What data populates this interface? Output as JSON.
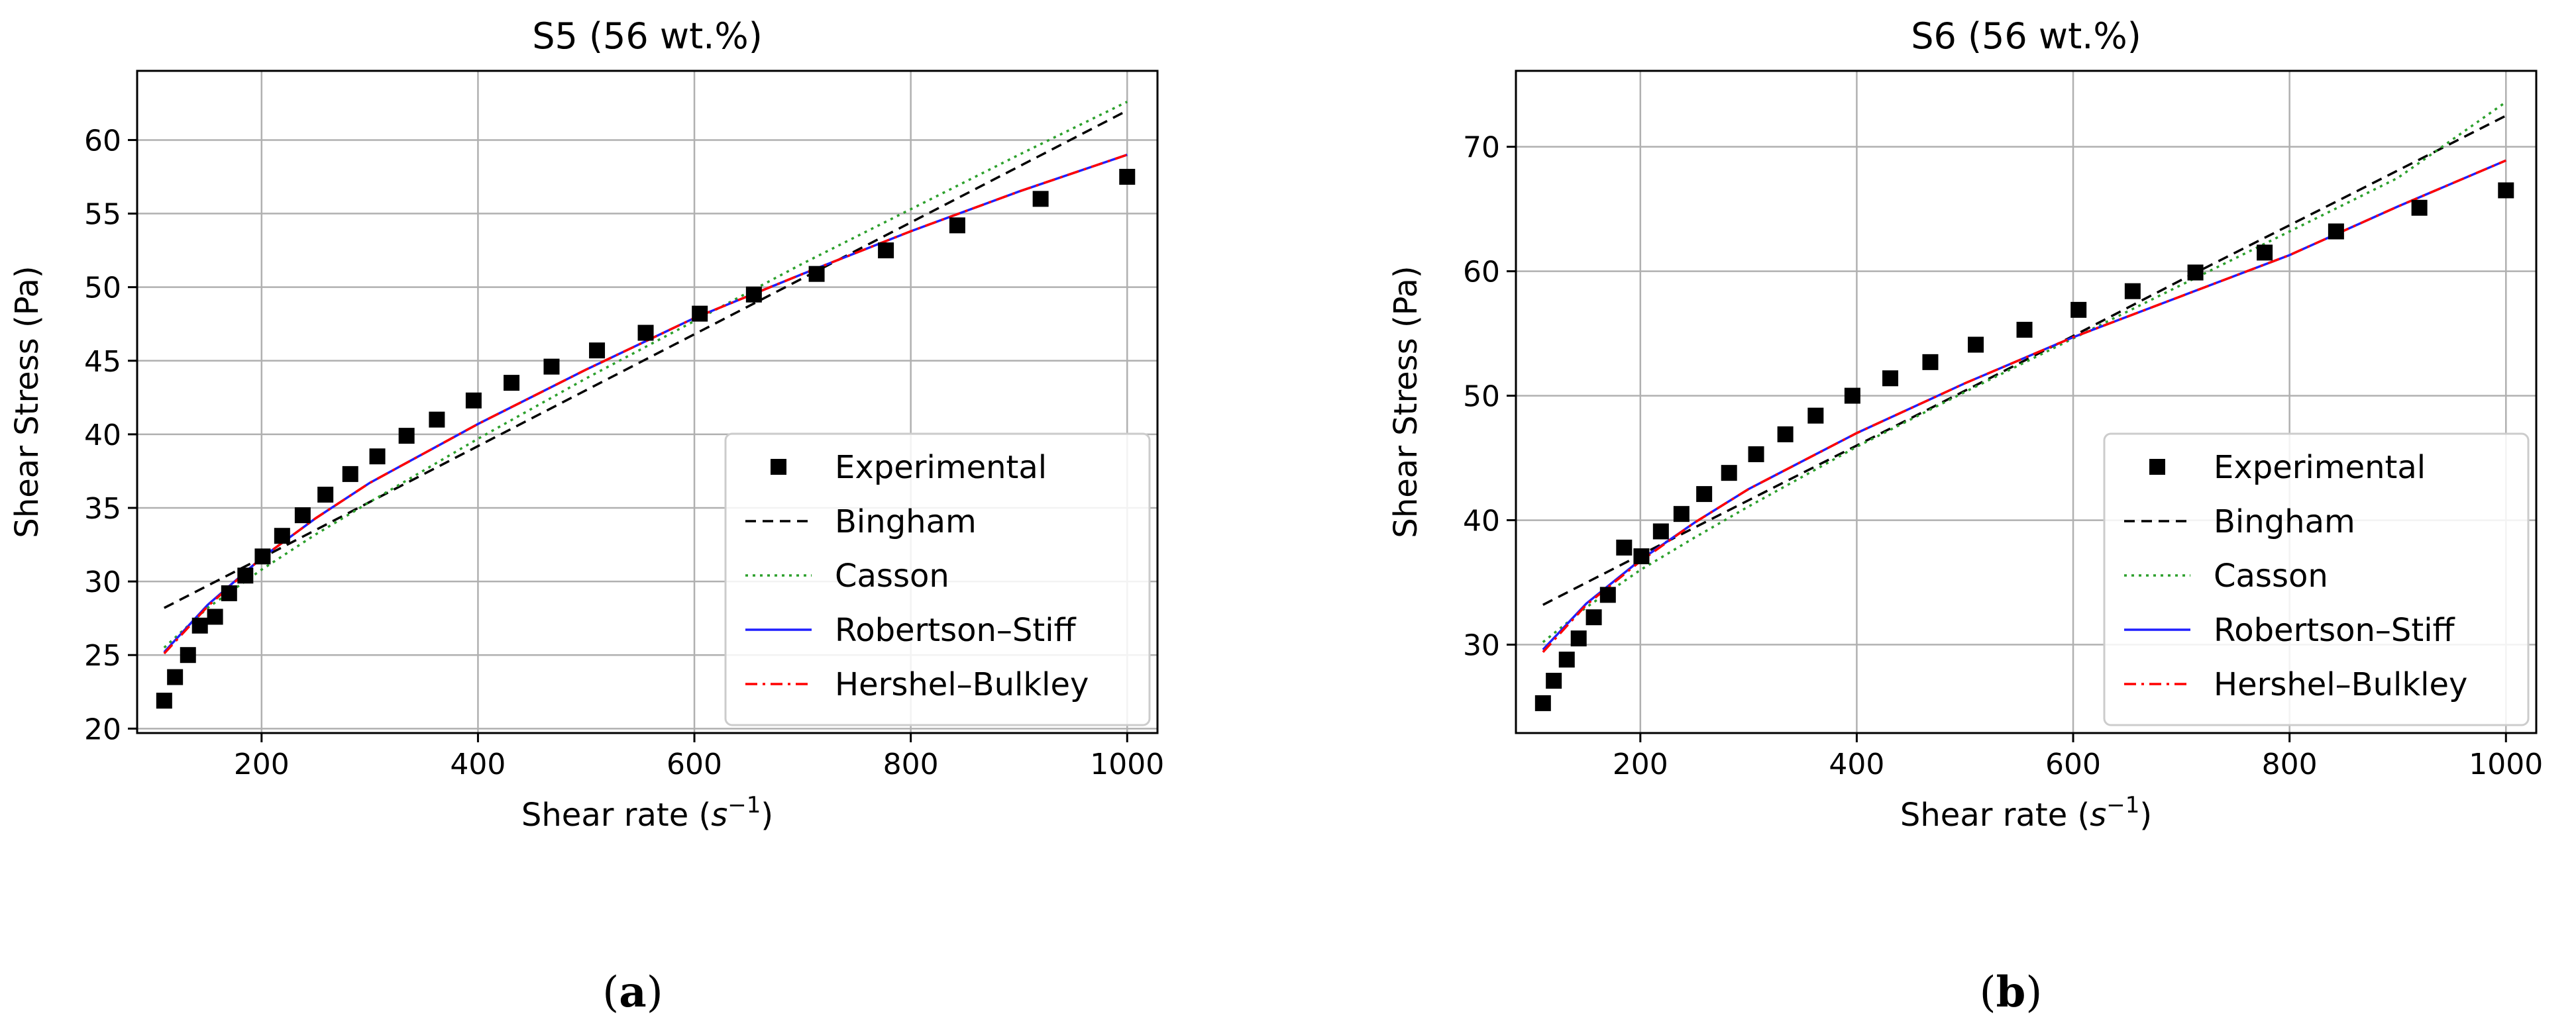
{
  "figure": {
    "panels": [
      {
        "label": "a",
        "caption_open": "(",
        "caption_close": ")"
      },
      {
        "label": "b",
        "caption_open": "(",
        "caption_close": ")"
      }
    ]
  },
  "legend": {
    "entries": [
      "Experimental",
      "Bingham",
      "Casson",
      "Robertson–Stiff",
      "Hershel–Bulkley"
    ]
  },
  "styles": {
    "Experimental": {
      "color": "#000000",
      "kind": "marker"
    },
    "Bingham": {
      "color": "#000000",
      "kind": "line",
      "dash": "16,10"
    },
    "Casson": {
      "color": "#2ca02c",
      "kind": "line",
      "dash": "4,7"
    },
    "Robertson–Stiff": {
      "color": "#1f1fff",
      "kind": "line",
      "dash": ""
    },
    "Hershel–Bulkley": {
      "color": "#ff0000",
      "kind": "line",
      "dash": "18,8,4,8"
    }
  },
  "chart_data": [
    {
      "type": "line",
      "title": "S5 (56 wt.%)",
      "xlabel": "Shear rate",
      "xlabel_unit_base": "s",
      "xlabel_unit_exp": "−1",
      "ylabel": "Shear Stress (Pa)",
      "xlim": [
        85,
        1028
      ],
      "ylim": [
        19.7,
        64.7
      ],
      "xticks": [
        200,
        400,
        600,
        800,
        1000
      ],
      "yticks": [
        20,
        25,
        30,
        35,
        40,
        45,
        50,
        55,
        60
      ],
      "legend_position": "lower-right",
      "series": [
        {
          "name": "Experimental",
          "x": [
            110,
            120,
            132,
            143,
            157,
            170,
            185,
            201,
            219,
            238,
            259,
            282,
            307,
            334,
            362,
            396,
            431,
            468,
            510,
            555,
            605,
            655,
            713,
            777,
            843,
            920,
            1000
          ],
          "y": [
            21.9,
            23.5,
            25.0,
            27.0,
            27.6,
            29.2,
            30.4,
            31.7,
            33.1,
            34.5,
            35.9,
            37.3,
            38.5,
            39.9,
            41.0,
            42.3,
            43.5,
            44.6,
            45.7,
            46.9,
            48.2,
            49.5,
            50.9,
            52.5,
            54.2,
            56.0,
            57.5
          ]
        },
        {
          "name": "Bingham",
          "x": [
            110,
            200,
            300,
            400,
            500,
            600,
            700,
            800,
            900,
            1000
          ],
          "y": [
            28.2,
            31.6,
            35.4,
            39.2,
            43.0,
            46.8,
            50.6,
            54.4,
            58.2,
            62.0
          ]
        },
        {
          "name": "Casson",
          "x": [
            110,
            150,
            200,
            250,
            300,
            400,
            500,
            600,
            700,
            800,
            900,
            1000
          ],
          "y": [
            25.5,
            28.2,
            30.8,
            33.2,
            35.4,
            39.7,
            43.8,
            47.7,
            51.6,
            55.3,
            59.0,
            62.6
          ]
        },
        {
          "name": "Robertson–Stiff",
          "x": [
            110,
            150,
            200,
            250,
            300,
            400,
            500,
            600,
            700,
            800,
            900,
            1000
          ],
          "y": [
            25.2,
            28.4,
            31.6,
            34.3,
            36.7,
            40.7,
            44.4,
            47.9,
            50.9,
            53.8,
            56.5,
            59.0
          ]
        },
        {
          "name": "Hershel–Bulkley",
          "x": [
            110,
            150,
            200,
            250,
            300,
            400,
            500,
            600,
            700,
            800,
            900,
            1000
          ],
          "y": [
            25.1,
            28.3,
            31.6,
            34.3,
            36.7,
            40.7,
            44.4,
            47.9,
            50.9,
            53.8,
            56.5,
            59.0
          ]
        }
      ]
    },
    {
      "type": "line",
      "title": "S6 (56 wt.%)",
      "xlabel": "Shear rate",
      "xlabel_unit_base": "s",
      "xlabel_unit_exp": "−1",
      "ylabel": "Shear Stress (Pa)",
      "xlim": [
        85,
        1028
      ],
      "ylim": [
        22.9,
        76.1
      ],
      "xticks": [
        200,
        400,
        600,
        800,
        1000
      ],
      "yticks": [
        30,
        40,
        50,
        60,
        70
      ],
      "legend_position": "lower-right",
      "series": [
        {
          "name": "Experimental",
          "x": [
            110,
            120,
            132,
            143,
            157,
            170,
            185,
            201,
            219,
            238,
            259,
            282,
            307,
            334,
            362,
            396,
            431,
            468,
            510,
            555,
            605,
            655,
            713,
            777,
            843,
            920,
            1000
          ],
          "y": [
            25.3,
            27.1,
            28.8,
            30.5,
            32.2,
            34.0,
            37.8,
            37.1,
            39.1,
            40.5,
            42.1,
            43.8,
            45.3,
            46.9,
            48.4,
            50.0,
            51.4,
            52.7,
            54.1,
            55.3,
            56.9,
            58.4,
            59.9,
            61.5,
            63.2,
            65.1,
            66.5
          ]
        },
        {
          "name": "Bingham",
          "x": [
            110,
            200,
            300,
            400,
            500,
            600,
            700,
            800,
            900,
            1000
          ],
          "y": [
            33.2,
            37.2,
            41.6,
            46.0,
            50.4,
            54.8,
            59.3,
            63.7,
            68.1,
            72.5
          ]
        },
        {
          "name": "Casson",
          "x": [
            110,
            150,
            200,
            250,
            300,
            400,
            500,
            600,
            700,
            800,
            900,
            1000
          ],
          "y": [
            30.2,
            33.0,
            36.0,
            38.6,
            41.1,
            45.9,
            50.3,
            54.6,
            58.9,
            63.2,
            67.5,
            73.6
          ]
        },
        {
          "name": "Robertson–Stiff",
          "x": [
            110,
            150,
            200,
            250,
            300,
            400,
            500,
            600,
            700,
            800,
            900,
            1000
          ],
          "y": [
            29.6,
            33.3,
            36.8,
            39.8,
            42.5,
            47.0,
            51.0,
            54.7,
            58.0,
            61.3,
            65.2,
            68.9
          ]
        },
        {
          "name": "Hershel–Bulkley",
          "x": [
            110,
            150,
            200,
            250,
            300,
            400,
            500,
            600,
            700,
            800,
            900,
            1000
          ],
          "y": [
            29.4,
            33.2,
            36.7,
            39.8,
            42.5,
            47.0,
            51.0,
            54.7,
            58.0,
            61.3,
            65.2,
            68.9
          ]
        }
      ]
    }
  ]
}
